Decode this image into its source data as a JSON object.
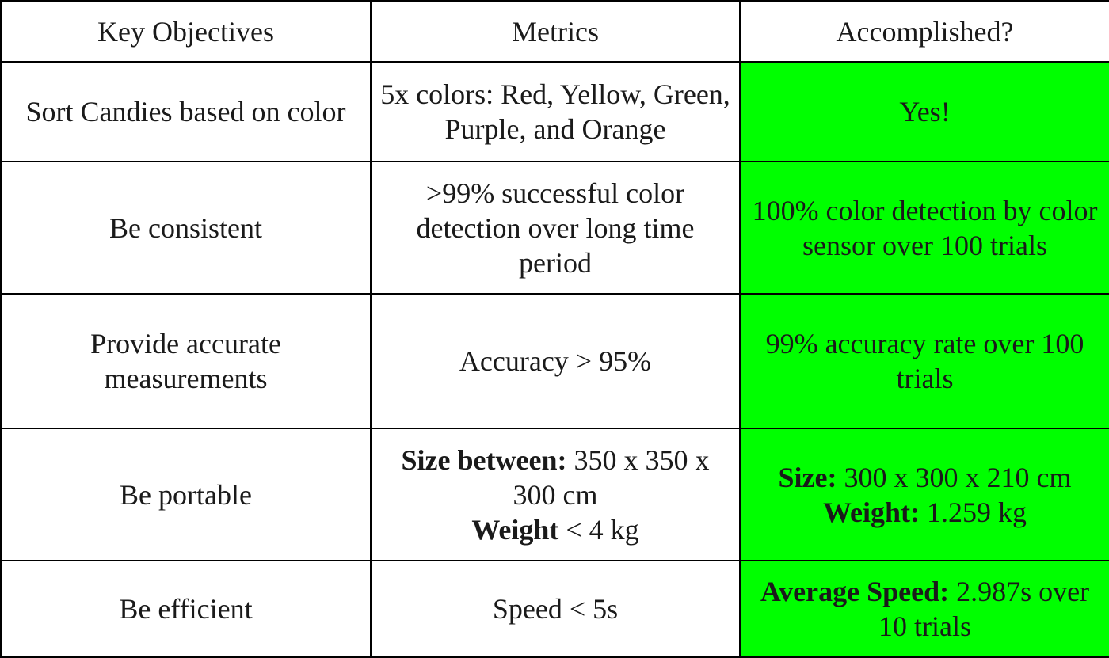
{
  "colors": {
    "accent": "#00ff00",
    "border": "#000000",
    "text": "#1a1a1a"
  },
  "headers": {
    "objectives": "Key Objectives",
    "metrics": "Metrics",
    "accomplished": "Accomplished?"
  },
  "rows": [
    {
      "objective": "Sort Candies based on color",
      "metric": "5x colors: Red, Yellow, Green, Purple, and Orange",
      "accomplished": "Yes!"
    },
    {
      "objective": "Be consistent",
      "metric": ">99% successful color detection over long time period",
      "accomplished": "100% color detection by color sensor over 100 trials"
    },
    {
      "objective": "Provide accurate measurements",
      "metric": "Accuracy > 95%",
      "accomplished": "99% accuracy rate over 100 trials"
    },
    {
      "objective": "Be portable",
      "metric_size_label": "Size between:",
      "metric_size_value": " 350 x 350 x 300 cm",
      "metric_weight_label": "Weight",
      "metric_weight_value": " < 4 kg",
      "acc_size_label": "Size:",
      "acc_size_value": " 300 x 300 x 210 cm",
      "acc_weight_label": "Weight:",
      "acc_weight_value": " 1.259 kg"
    },
    {
      "objective": "Be efficient",
      "metric": "Speed < 5s",
      "acc_speed_label": "Average Speed:",
      "acc_speed_value": " 2.987s over 10 trials"
    }
  ]
}
